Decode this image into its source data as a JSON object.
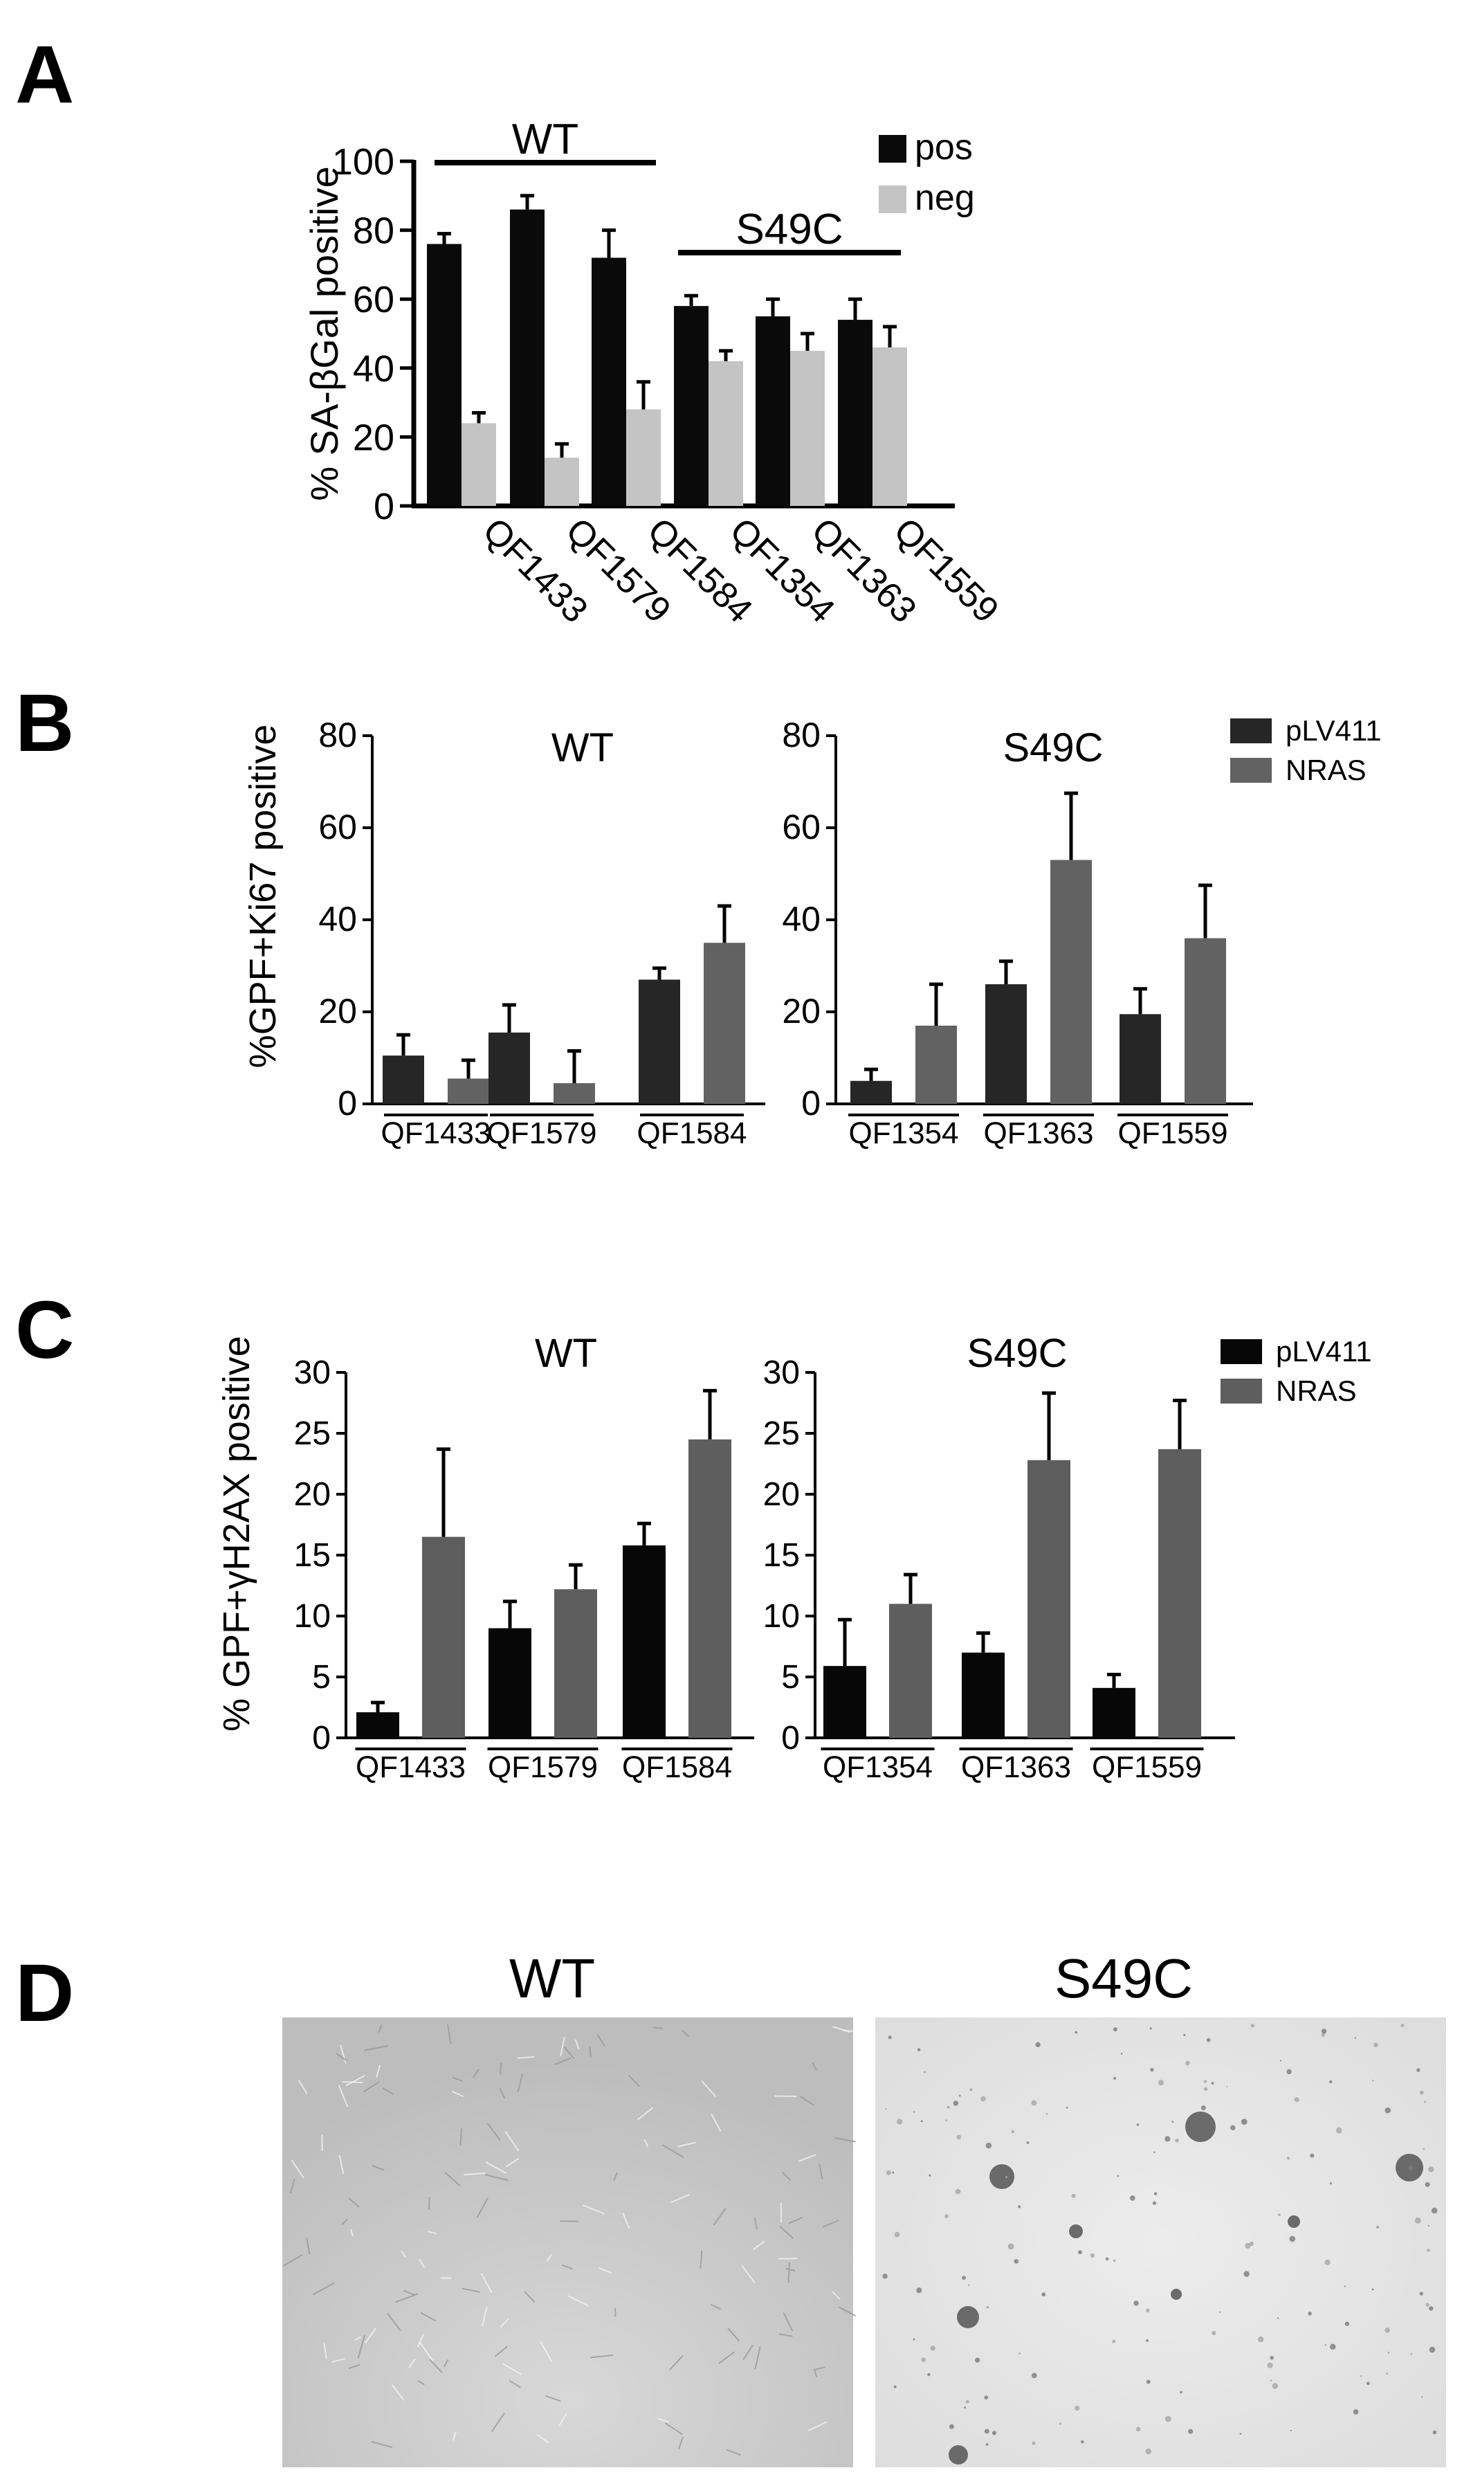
{
  "colors": {
    "pos": "#0a0a0a",
    "neg": "#c4c4c4",
    "pLV411_B": "#262626",
    "NRAS_B": "#626262",
    "pLV411_C": "#070707",
    "NRAS_C": "#5e5e5e",
    "axis": "#000000",
    "micro_wt": "#c9c9c9",
    "micro_s49c": "#e6e6e6"
  },
  "panels": {
    "A": {
      "letter": "A"
    },
    "B": {
      "letter": "B"
    },
    "C": {
      "letter": "C"
    },
    "D": {
      "letter": "D",
      "image_titles": [
        "WT",
        "S49C"
      ]
    }
  },
  "chart_data": [
    {
      "id": "A",
      "type": "bar",
      "title": "",
      "ylabel": "% SA-βGal positive",
      "xlabel": "",
      "ylim": [
        0,
        100
      ],
      "yticks": [
        0,
        20,
        40,
        60,
        80,
        100
      ],
      "categories": [
        "QF1433",
        "QF1579",
        "QF1584",
        "QF1354",
        "QF1363",
        "QF1559"
      ],
      "series": [
        {
          "name": "pos",
          "values": [
            76,
            86,
            72,
            58,
            55,
            54
          ],
          "errors": [
            3,
            4,
            8,
            3,
            5,
            6
          ]
        },
        {
          "name": "neg",
          "values": [
            24,
            14,
            28,
            42,
            45,
            46
          ],
          "errors": [
            3,
            4,
            8,
            3,
            5,
            6
          ]
        }
      ],
      "group_labels": [
        {
          "label": "WT",
          "categories": [
            "QF1433",
            "QF1579",
            "QF1584"
          ]
        },
        {
          "label": "S49C",
          "categories": [
            "QF1354",
            "QF1363",
            "QF1559"
          ]
        }
      ],
      "legend": [
        "pos",
        "neg"
      ]
    },
    {
      "id": "B",
      "type": "bar",
      "ylabel": "%GPF+Ki67 positive",
      "legend": [
        "pLV411",
        "NRAS"
      ],
      "subplots": [
        {
          "title": "WT",
          "ylim": [
            0,
            80
          ],
          "yticks": [
            0,
            20,
            40,
            60,
            80
          ],
          "categories": [
            "QF1433",
            "QF1579",
            "QF1584"
          ],
          "series": [
            {
              "name": "pLV411",
              "values": [
                10.5,
                15.5,
                27
              ],
              "errors": [
                4.5,
                6,
                2.5
              ]
            },
            {
              "name": "NRAS",
              "values": [
                5.5,
                4.5,
                35
              ],
              "errors": [
                4,
                7,
                8
              ]
            }
          ]
        },
        {
          "title": "S49C",
          "ylim": [
            0,
            80
          ],
          "yticks": [
            0,
            20,
            40,
            60,
            80
          ],
          "categories": [
            "QF1354",
            "QF1363",
            "QF1559"
          ],
          "series": [
            {
              "name": "pLV411",
              "values": [
                5,
                26,
                19.5
              ],
              "errors": [
                2.5,
                5,
                5.5
              ]
            },
            {
              "name": "NRAS",
              "values": [
                17,
                53,
                36
              ],
              "errors": [
                9,
                14.5,
                11.5
              ]
            }
          ]
        }
      ]
    },
    {
      "id": "C",
      "type": "bar",
      "ylabel": "% GPF+γH2AX positive",
      "legend": [
        "pLV411",
        "NRAS"
      ],
      "subplots": [
        {
          "title": "WT",
          "ylim": [
            0,
            30
          ],
          "yticks": [
            0,
            5,
            10,
            15,
            20,
            25,
            30
          ],
          "categories": [
            "QF1433",
            "QF1579",
            "QF1584"
          ],
          "series": [
            {
              "name": "pLV411",
              "values": [
                2.1,
                9,
                15.8
              ],
              "errors": [
                0.8,
                2.2,
                1.8
              ]
            },
            {
              "name": "NRAS",
              "values": [
                16.5,
                12.2,
                24.5
              ],
              "errors": [
                7.2,
                2,
                4
              ]
            }
          ]
        },
        {
          "title": "S49C",
          "ylim": [
            0,
            30
          ],
          "yticks": [
            0,
            5,
            10,
            15,
            20,
            25,
            30
          ],
          "categories": [
            "QF1354",
            "QF1363",
            "QF1559"
          ],
          "series": [
            {
              "name": "pLV411",
              "values": [
                5.9,
                7,
                4.1
              ],
              "errors": [
                3.8,
                1.6,
                1.1
              ]
            },
            {
              "name": "NRAS",
              "values": [
                11,
                22.8,
                23.7
              ],
              "errors": [
                2.4,
                5.5,
                4
              ]
            }
          ]
        }
      ]
    }
  ]
}
